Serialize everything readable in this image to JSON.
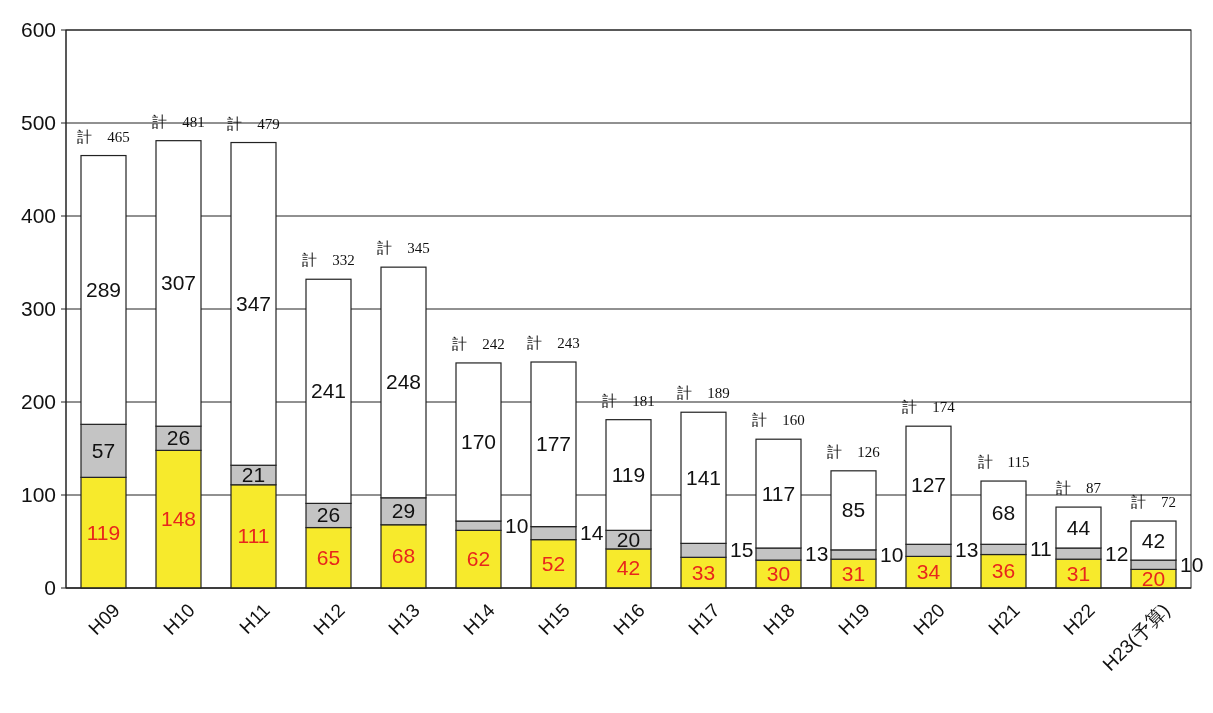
{
  "chart_data": {
    "type": "bar",
    "stacked": true,
    "categories": [
      "H09",
      "H10",
      "H11",
      "H12",
      "H13",
      "H14",
      "H15",
      "H16",
      "H17",
      "H18",
      "H19",
      "H20",
      "H21",
      "H22",
      "H23(予算)"
    ],
    "series": [
      {
        "color": "#f7ea2c",
        "values": [
          119,
          148,
          111,
          65,
          68,
          62,
          52,
          42,
          33,
          30,
          31,
          34,
          36,
          31,
          20
        ]
      },
      {
        "color": "#c4c4c4",
        "values": [
          57,
          26,
          21,
          26,
          29,
          10,
          14,
          20,
          15,
          13,
          10,
          13,
          11,
          12,
          10
        ]
      },
      {
        "color": "#ffffff",
        "values": [
          289,
          307,
          347,
          241,
          248,
          170,
          177,
          119,
          141,
          117,
          85,
          127,
          68,
          44,
          42
        ]
      }
    ],
    "totals": [
      "計　465",
      "計　481",
      "計　479",
      "計　332",
      "計　345",
      "計　242",
      "計　243",
      "計　181",
      "計　189",
      "計　160",
      "計　126",
      "計　174",
      "計　115",
      "計　87",
      "計　72"
    ],
    "ylim": [
      0,
      600
    ],
    "yticks": [
      0,
      100,
      200,
      300,
      400,
      500,
      600
    ],
    "grid": "y",
    "data_labels": true
  }
}
